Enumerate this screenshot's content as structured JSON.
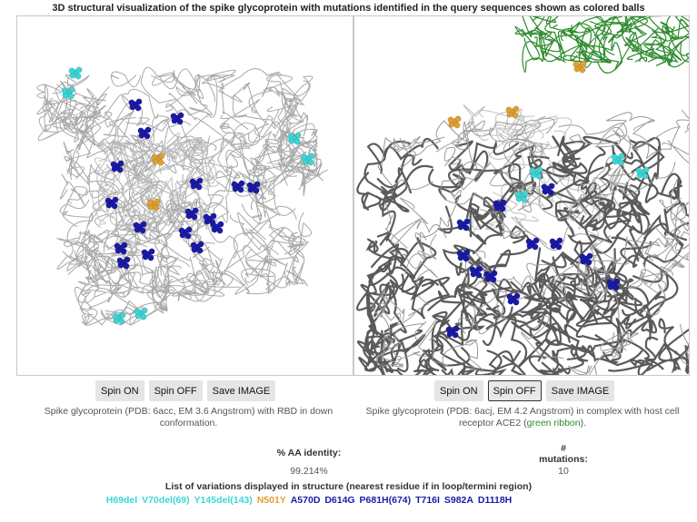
{
  "title": "3D structural visualization of the spike glycoprotein with mutations identified in the query sequences shown as colored balls",
  "left_panel": {
    "buttons": {
      "spin_on": "Spin ON",
      "spin_off": "Spin OFF",
      "save": "Save IMAGE"
    },
    "caption": "Spike glycoprotein (PDB: 6acc, EM 3.6 Angstrom) with RBD in down conformation."
  },
  "right_panel": {
    "buttons": {
      "spin_on": "Spin ON",
      "spin_off": "Spin OFF",
      "save": "Save IMAGE"
    },
    "caption_prefix": "Spike glycoprotein (PDB: 6acj, EM 4.2 Angstrom) in complex with host cell receptor ACE2 (",
    "caption_green": "green ribbon",
    "caption_suffix": ")."
  },
  "stats": {
    "identity_label": "% AA identity:",
    "identity_value": "99.214%",
    "mutations_label_hash": "#",
    "mutations_label": "mutations:",
    "mutations_value": "10"
  },
  "variations": {
    "title": "List of variations displayed in structure (nearest residue if in loop/termini region)",
    "items": [
      {
        "text": "H69del",
        "color": "cyan"
      },
      {
        "text": "V70del(69)",
        "color": "cyan"
      },
      {
        "text": "Y145del(143)",
        "color": "cyan"
      },
      {
        "text": "N501Y",
        "color": "orange"
      },
      {
        "text": "A570D",
        "color": "blue"
      },
      {
        "text": "D614G",
        "color": "blue"
      },
      {
        "text": "P681H(674)",
        "color": "blue"
      },
      {
        "text": "T716I",
        "color": "blue"
      },
      {
        "text": "S982A",
        "color": "blue"
      },
      {
        "text": "D1118H",
        "color": "blue"
      }
    ]
  },
  "colors": {
    "cyan": "#3cd6d6",
    "orange": "#e0a030",
    "blue": "#1a1aa8",
    "ace2_green": "#2e8b2e",
    "backbone_light": "#a8a8a8",
    "backbone_dark": "#555555"
  }
}
